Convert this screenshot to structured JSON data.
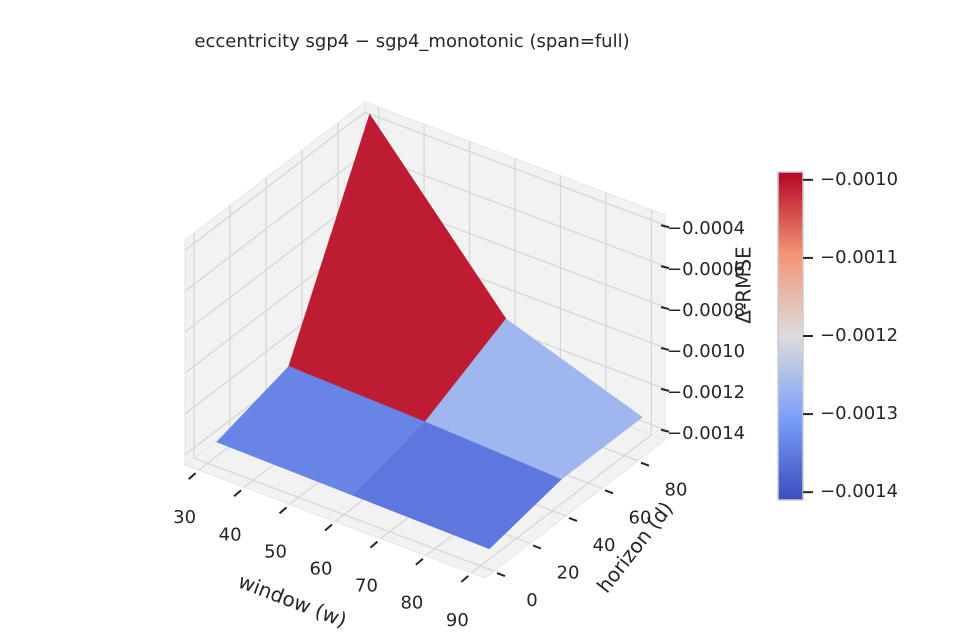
{
  "chart_data": {
    "type": "surface",
    "title": "eccentricity  sgp4 − sgp4_monotonic  (span=full)",
    "xlabel": "window (w)",
    "ylabel": "horizon (d)",
    "zlabel": "Δ-RMSE",
    "x": [
      30,
      60,
      90
    ],
    "y": [
      5,
      45,
      90
    ],
    "z": [
      [
        -0.00138,
        -0.00139,
        -0.0014
      ],
      [
        -0.00128,
        -0.0013,
        -0.00133
      ],
      [
        -0.00035,
        -0.0011,
        -0.00133
      ]
    ],
    "xlim": [
      27,
      93
    ],
    "ylim": [
      -5,
      95
    ],
    "zlim": [
      -0.00145,
      -0.00035
    ],
    "xticks": [
      30,
      40,
      50,
      60,
      70,
      80,
      90
    ],
    "yticks": [
      0,
      20,
      40,
      60,
      80
    ],
    "zticks": [
      {
        "value": -0.0004,
        "label": "−0.0004"
      },
      {
        "value": -0.0006,
        "label": "−0.0006"
      },
      {
        "value": -0.0008,
        "label": "−0.0008"
      },
      {
        "value": -0.001,
        "label": "−0.0010"
      },
      {
        "value": -0.0012,
        "label": "−0.0012"
      },
      {
        "value": -0.0014,
        "label": "−0.0014"
      }
    ],
    "colormap": "coolwarm",
    "colorbar": {
      "lim": [
        -0.00141,
        -0.00099
      ],
      "ticks": [
        {
          "value": -0.001,
          "label": "−0.0010"
        },
        {
          "value": -0.0011,
          "label": "−0.0011"
        },
        {
          "value": -0.0012,
          "label": "−0.0012"
        },
        {
          "value": -0.0013,
          "label": "−0.0013"
        },
        {
          "value": -0.0014,
          "label": "−0.0014"
        }
      ]
    }
  }
}
